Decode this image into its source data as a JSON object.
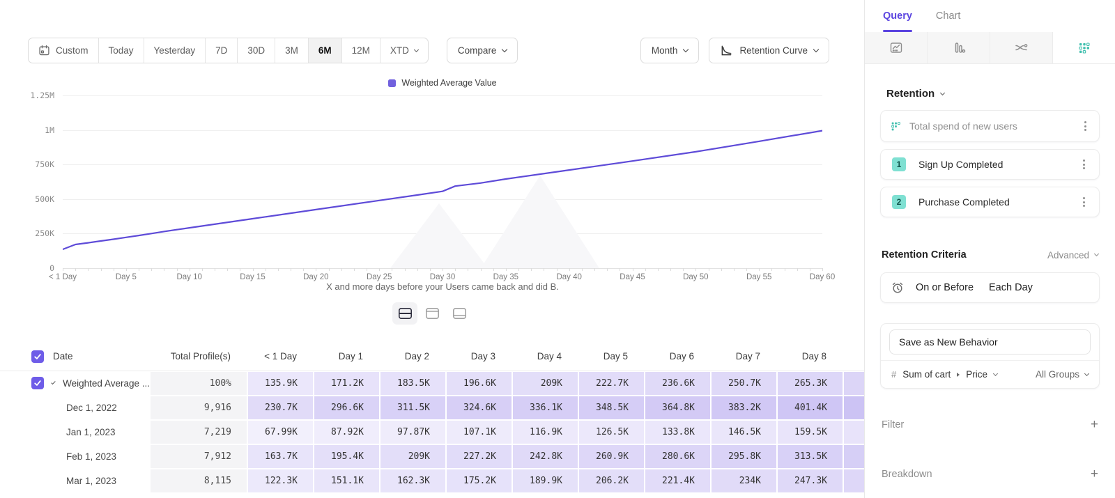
{
  "toolbar": {
    "date_ranges": [
      "Custom",
      "Today",
      "Yesterday",
      "7D",
      "30D",
      "3M",
      "6M",
      "12M",
      "XTD"
    ],
    "active_range": "6M",
    "compare_label": "Compare",
    "granularity_label": "Month",
    "chart_type_label": "Retention Curve"
  },
  "chart_data": {
    "type": "line",
    "caption": "X and more days before your Users came back and did B.",
    "xlim_days": [
      0,
      60
    ],
    "ylim_k": [
      0,
      1250
    ],
    "grid": true,
    "legend_position": "top-center",
    "y_ticks": [
      "0",
      "250K",
      "500K",
      "750K",
      "1M",
      "1.25M"
    ],
    "y_tick_values_k": [
      0,
      250,
      500,
      750,
      1000,
      1250
    ],
    "x_ticks": [
      "< 1 Day",
      "Day 5",
      "Day 10",
      "Day 15",
      "Day 20",
      "Day 25",
      "Day 30",
      "Day 35",
      "Day 40",
      "Day 45",
      "Day 50",
      "Day 55",
      "Day 60"
    ],
    "x_tick_days": [
      0,
      5,
      10,
      15,
      20,
      25,
      30,
      35,
      40,
      45,
      50,
      55,
      60
    ],
    "series": [
      {
        "name": "Weighted Average Value",
        "color": "#5E4BD8",
        "points_day_valueK": [
          [
            0,
            136
          ],
          [
            1,
            171.2
          ],
          [
            2,
            183.5
          ],
          [
            3,
            196.6
          ],
          [
            4,
            209
          ],
          [
            5,
            222.7
          ],
          [
            6,
            236.6
          ],
          [
            7,
            250.7
          ],
          [
            8,
            265.3
          ],
          [
            10,
            292
          ],
          [
            15,
            358
          ],
          [
            20,
            424
          ],
          [
            25,
            490
          ],
          [
            28,
            529
          ],
          [
            30,
            556
          ],
          [
            31,
            594
          ],
          [
            33,
            616
          ],
          [
            35,
            645
          ],
          [
            40,
            710
          ],
          [
            45,
            775
          ],
          [
            50,
            842
          ],
          [
            55,
            918
          ],
          [
            60,
            995
          ]
        ]
      }
    ]
  },
  "view_toggles": {
    "options": [
      "split-view",
      "top-pane-view",
      "bottom-pane-view"
    ],
    "active": "split-view"
  },
  "table": {
    "columns": [
      "Date",
      "Total Profile(s)",
      "< 1 Day",
      "Day 1",
      "Day 2",
      "Day 3",
      "Day 4",
      "Day 5",
      "Day 6",
      "Day 7",
      "Day 8"
    ],
    "rows": [
      {
        "date": "Weighted Average ...",
        "profiles": "100%",
        "checked": true,
        "expandable": true,
        "values": [
          "135.9K",
          "171.2K",
          "183.5K",
          "196.6K",
          "209K",
          "222.7K",
          "236.6K",
          "250.7K",
          "265.3K"
        ]
      },
      {
        "date": "Dec 1, 2022",
        "profiles": "9,916",
        "values": [
          "230.7K",
          "296.6K",
          "311.5K",
          "324.6K",
          "336.1K",
          "348.5K",
          "364.8K",
          "383.2K",
          "401.4K"
        ]
      },
      {
        "date": "Jan 1, 2023",
        "profiles": "7,219",
        "values": [
          "67.99K",
          "87.92K",
          "97.87K",
          "107.1K",
          "116.9K",
          "126.5K",
          "133.8K",
          "146.5K",
          "159.5K"
        ]
      },
      {
        "date": "Feb 1, 2023",
        "profiles": "7,912",
        "values": [
          "163.7K",
          "195.4K",
          "209K",
          "227.2K",
          "242.8K",
          "260.9K",
          "280.6K",
          "295.8K",
          "313.5K"
        ]
      },
      {
        "date": "Mar 1, 2023",
        "profiles": "8,115",
        "values": [
          "122.3K",
          "151.1K",
          "162.3K",
          "175.2K",
          "189.9K",
          "206.2K",
          "221.4K",
          "234K",
          "247.3K"
        ]
      }
    ]
  },
  "query_panel": {
    "tabs": [
      "Query",
      "Chart"
    ],
    "active_tab": "Query",
    "report_tabs": [
      "insights",
      "funnels",
      "flows",
      "retention"
    ],
    "active_report": "retention",
    "section_title": "Retention",
    "behavior": {
      "title": "Total spend of new users",
      "steps": [
        {
          "num": "1",
          "label": "Sign Up Completed"
        },
        {
          "num": "2",
          "label": "Purchase Completed"
        }
      ]
    },
    "criteria": {
      "label": "Retention Criteria",
      "mode": "Advanced",
      "condition": "On or Before",
      "frequency": "Each Day"
    },
    "save_label": "Save as New Behavior",
    "metric": {
      "prefix": "#",
      "property": "Sum of cart",
      "subproperty": "Price",
      "group": "All Groups"
    },
    "filter_label": "Filter",
    "breakdown_label": "Breakdown"
  },
  "colors": {
    "accent_purple": "#5E4BD8",
    "legend_swatch": "#7161DE",
    "heatmap_base_rgb": "122,97,226",
    "teal": "#3FBFAE",
    "badge_bg": "#7FE0D2",
    "active_tab_purple": "#5B45E0"
  }
}
